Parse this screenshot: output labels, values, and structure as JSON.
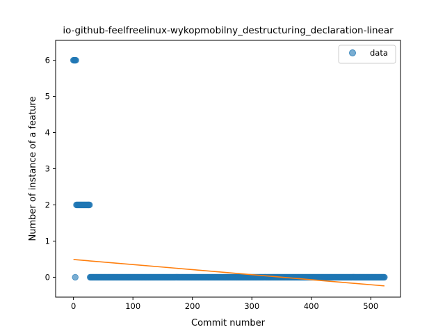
{
  "chart_data": {
    "type": "scatter",
    "title": "io-github-feelfreelinux-wykopmobilny_destructuring_declaration-linear",
    "xlabel": "Commit number",
    "ylabel": "Number of instance of a feature",
    "xlim": [
      -30,
      550
    ],
    "ylim": [
      -0.55,
      6.55
    ],
    "xticks": [
      0,
      100,
      200,
      300,
      400,
      500
    ],
    "yticks": [
      0,
      1,
      2,
      3,
      4,
      5,
      6
    ],
    "grid": false,
    "legend": {
      "position": "upper right",
      "entries": [
        "data"
      ]
    },
    "colors": {
      "data": "#1f77b4",
      "fit": "#ff7f0e"
    },
    "series": [
      {
        "name": "data",
        "style": "points",
        "segments": [
          {
            "x_start": 0,
            "x_end": 4,
            "y": 6
          },
          {
            "x_start": 3,
            "x_end": 3,
            "y": 0
          },
          {
            "x_start": 5,
            "x_end": 27,
            "y": 2
          },
          {
            "x_start": 28,
            "x_end": 523,
            "y": 0
          }
        ]
      },
      {
        "style": "line",
        "x": [
          0,
          523
        ],
        "y": [
          0.49,
          -0.24
        ]
      }
    ]
  }
}
